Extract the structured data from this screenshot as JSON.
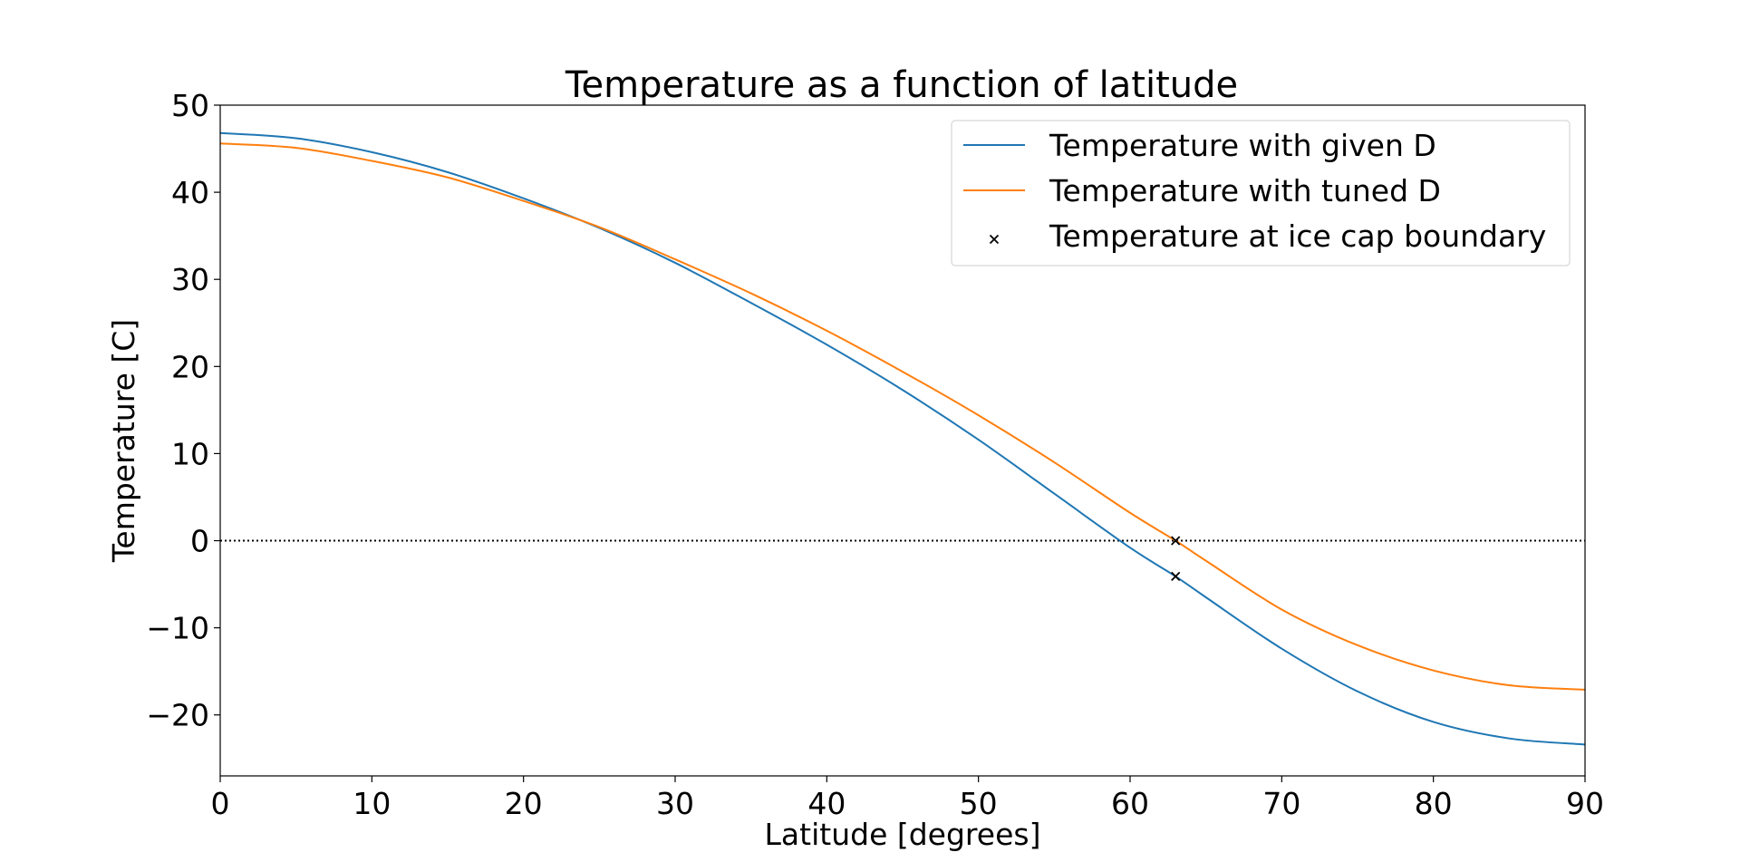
{
  "chart_data": {
    "type": "line",
    "title": "Temperature as a function of latitude",
    "xlabel": "Latitude [degrees]",
    "ylabel": "Temperature [C]",
    "xlim": [
      0,
      90
    ],
    "ylim": [
      -27,
      50
    ],
    "xticks": [
      0,
      10,
      20,
      30,
      40,
      50,
      60,
      70,
      80,
      90
    ],
    "yticks": [
      50,
      40,
      30,
      20,
      10,
      0,
      -10,
      -20
    ],
    "xtick_labels": [
      "0",
      "10",
      "20",
      "30",
      "40",
      "50",
      "60",
      "70",
      "80",
      "90"
    ],
    "ytick_labels": [
      "50",
      "40",
      "30",
      "20",
      "10",
      "0",
      "−10",
      "−20"
    ],
    "grid": false,
    "legend_position": "top-right",
    "reference_line": {
      "y": 0,
      "style": "dotted",
      "color": "#000000"
    },
    "series": [
      {
        "name": "Temperature with given D",
        "color": "#1f77b4",
        "x": [
          0,
          5,
          10,
          15,
          20,
          25,
          30,
          35,
          40,
          45,
          50,
          55,
          60,
          63,
          65,
          70,
          75,
          80,
          85,
          90
        ],
        "y": [
          46.8,
          46.2,
          44.6,
          42.3,
          39.3,
          35.9,
          31.9,
          27.3,
          22.5,
          17.3,
          11.6,
          5.4,
          -0.8,
          -4.1,
          -6.5,
          -12.4,
          -17.3,
          -20.8,
          -22.7,
          -23.4
        ]
      },
      {
        "name": "Temperature with tuned D",
        "color": "#ff7f0e",
        "x": [
          0,
          5,
          10,
          15,
          20,
          25,
          30,
          35,
          40,
          45,
          50,
          55,
          60,
          63,
          65,
          70,
          75,
          80,
          85,
          90
        ],
        "y": [
          45.6,
          45.1,
          43.6,
          41.7,
          39.0,
          36.0,
          32.3,
          28.4,
          24.1,
          19.4,
          14.4,
          9.0,
          3.2,
          0.0,
          -2.3,
          -7.9,
          -12.0,
          -14.9,
          -16.6,
          -17.1
        ]
      },
      {
        "name": "Temperature at ice cap boundary",
        "color": "#000000",
        "marker": "x",
        "points": [
          {
            "x": 63,
            "y": 0.0
          },
          {
            "x": 63,
            "y": -4.1
          }
        ]
      }
    ]
  }
}
